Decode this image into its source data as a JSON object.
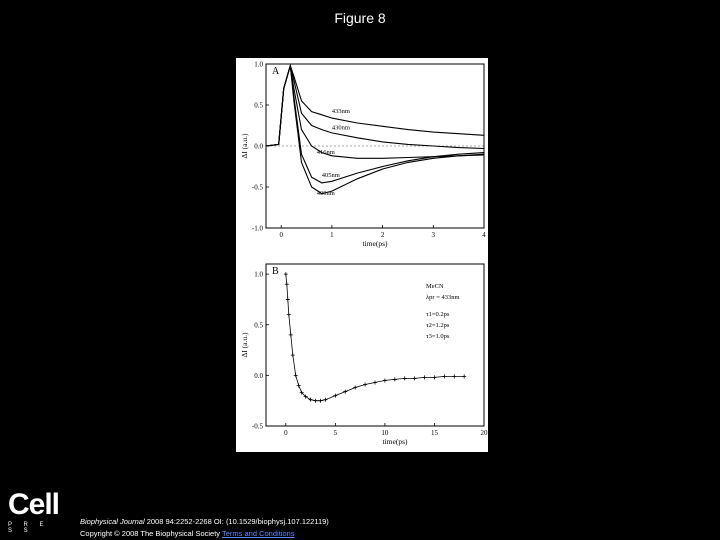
{
  "header": {
    "title": "Figure 8"
  },
  "footer": {
    "journal": "Biophysical Journal",
    "citation": " 2008 94:2252-2268 OI: (10.1529/biophysj.107.122119)",
    "copyright": "Copyright © 2008 The Biophysical Society",
    "link_text": "Terms and Conditions"
  },
  "logo": {
    "word": "Cell",
    "sub": "P R E S S"
  },
  "chart_data": [
    {
      "type": "line",
      "panel_label": "A",
      "xlabel": "time(ps)",
      "ylabel": "ΔI (a.u.)",
      "xlim": [
        -0.3,
        4
      ],
      "ylim": [
        -1.0,
        1.0
      ],
      "xticks": [
        "0",
        "1",
        "2",
        "3",
        "4"
      ],
      "yticks": [
        "1.0",
        "0.5",
        "0.0",
        "-0.5",
        "-1.0"
      ],
      "series": [
        {
          "name": "433nm",
          "x": [
            -0.3,
            -0.05,
            0.05,
            0.18,
            0.25,
            0.4,
            0.6,
            0.8,
            1.0,
            1.5,
            2.0,
            2.5,
            3.0,
            3.5,
            4.0
          ],
          "y": [
            0.0,
            0.02,
            0.7,
            0.98,
            0.85,
            0.55,
            0.42,
            0.38,
            0.34,
            0.28,
            0.24,
            0.2,
            0.17,
            0.15,
            0.13
          ]
        },
        {
          "name": "430nm",
          "x": [
            -0.3,
            -0.05,
            0.05,
            0.18,
            0.25,
            0.4,
            0.6,
            0.8,
            1.0,
            1.5,
            2.0,
            2.5,
            3.0,
            3.5,
            4.0
          ],
          "y": [
            0.0,
            0.02,
            0.7,
            0.98,
            0.8,
            0.4,
            0.25,
            0.2,
            0.16,
            0.1,
            0.05,
            0.02,
            0.0,
            -0.02,
            -0.03
          ]
        },
        {
          "name": "416nm",
          "x": [
            -0.3,
            -0.05,
            0.05,
            0.18,
            0.25,
            0.4,
            0.6,
            0.8,
            1.0,
            1.5,
            2.0,
            2.5,
            3.0,
            3.5,
            4.0
          ],
          "y": [
            0.0,
            0.02,
            0.7,
            0.98,
            0.7,
            0.2,
            0.0,
            -0.08,
            -0.12,
            -0.15,
            -0.15,
            -0.14,
            -0.13,
            -0.12,
            -0.11
          ]
        },
        {
          "name": "405nm",
          "x": [
            -0.3,
            -0.05,
            0.05,
            0.18,
            0.25,
            0.4,
            0.6,
            0.8,
            1.0,
            1.5,
            2.0,
            2.5,
            3.0,
            3.5,
            4.0
          ],
          "y": [
            0.0,
            0.02,
            0.7,
            0.98,
            0.6,
            -0.1,
            -0.38,
            -0.45,
            -0.43,
            -0.33,
            -0.25,
            -0.18,
            -0.13,
            -0.1,
            -0.08
          ]
        },
        {
          "name": "400nm",
          "x": [
            -0.3,
            -0.05,
            0.05,
            0.18,
            0.25,
            0.4,
            0.6,
            0.8,
            1.0,
            1.5,
            2.0,
            2.5,
            3.0,
            3.5,
            4.0
          ],
          "y": [
            0.0,
            0.02,
            0.7,
            0.98,
            0.55,
            -0.2,
            -0.5,
            -0.58,
            -0.55,
            -0.4,
            -0.28,
            -0.2,
            -0.15,
            -0.12,
            -0.1
          ]
        }
      ]
    },
    {
      "type": "scatter",
      "panel_label": "B",
      "xlabel": "time(ps)",
      "ylabel": "ΔI (a.u.)",
      "xlim": [
        -2,
        20
      ],
      "ylim": [
        -0.5,
        1.1
      ],
      "xticks": [
        "0",
        "5",
        "10",
        "15",
        "20"
      ],
      "yticks": [
        "1.0",
        "0.5",
        "0.0",
        "-0.5"
      ],
      "annotations": [
        "MeCN",
        "λpr = 433nm",
        "τ1=0.2ps",
        "τ2=1.2ps",
        "τ3=1.0ps"
      ],
      "series": [
        {
          "x": [
            0.0,
            0.1,
            0.2,
            0.3,
            0.5,
            0.7,
            1.0,
            1.3,
            1.6,
            2.0,
            2.5,
            3.0,
            3.5,
            4.0,
            5.0,
            6.0,
            7.0,
            8.0,
            9.0,
            10.0,
            11.0,
            12.0,
            13.0,
            14.0,
            15.0,
            16.0,
            17.0,
            18.0
          ],
          "y": [
            1.0,
            0.9,
            0.75,
            0.6,
            0.4,
            0.2,
            0.0,
            -0.1,
            -0.17,
            -0.21,
            -0.24,
            -0.25,
            -0.25,
            -0.24,
            -0.2,
            -0.16,
            -0.12,
            -0.09,
            -0.07,
            -0.05,
            -0.04,
            -0.03,
            -0.03,
            -0.02,
            -0.02,
            -0.01,
            -0.01,
            -0.01
          ]
        }
      ]
    }
  ]
}
